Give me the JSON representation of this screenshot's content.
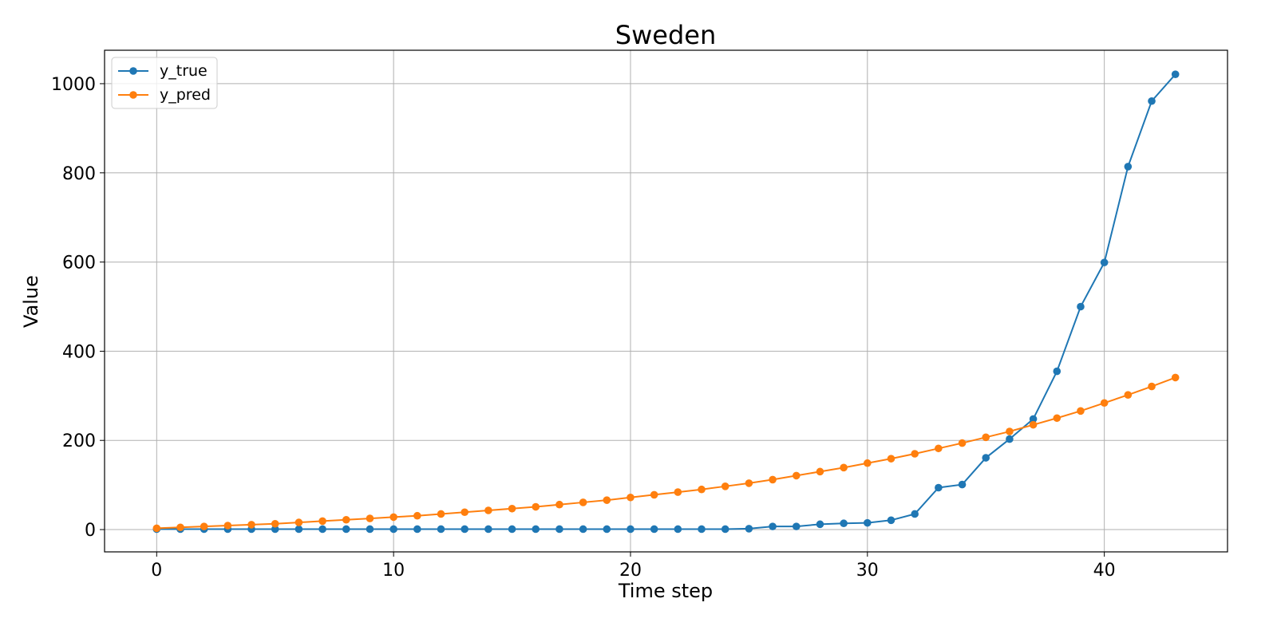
{
  "chart_data": {
    "type": "line",
    "title": "Sweden",
    "xlabel": "Time step",
    "ylabel": "Value",
    "xlim": [
      -2.2,
      45.2
    ],
    "ylim": [
      -50,
      1075
    ],
    "xticks": [
      0,
      10,
      20,
      30,
      40
    ],
    "yticks": [
      0,
      200,
      400,
      600,
      800,
      1000
    ],
    "grid": true,
    "legend_position": "top-left",
    "x": [
      0,
      1,
      2,
      3,
      4,
      5,
      6,
      7,
      8,
      9,
      10,
      11,
      12,
      13,
      14,
      15,
      16,
      17,
      18,
      19,
      20,
      21,
      22,
      23,
      24,
      25,
      26,
      27,
      28,
      29,
      30,
      31,
      32,
      33,
      34,
      35,
      36,
      37,
      38,
      39,
      40,
      41,
      42,
      43
    ],
    "series": [
      {
        "name": "y_true",
        "color": "#1f77b4",
        "values": [
          1,
          1,
          1,
          1,
          1,
          1,
          1,
          1,
          1,
          1,
          1,
          1,
          1,
          1,
          1,
          1,
          1,
          1,
          1,
          1,
          1,
          1,
          1,
          1,
          1,
          2,
          7,
          7,
          12,
          14,
          15,
          21,
          35,
          94,
          101,
          161,
          203,
          248,
          355,
          500,
          599,
          814,
          961,
          1021
        ]
      },
      {
        "name": "y_pred",
        "color": "#ff7f0e",
        "values": [
          3,
          5,
          7,
          9,
          11,
          13,
          16,
          19,
          22,
          25,
          28,
          31,
          35,
          39,
          43,
          47,
          51,
          56,
          61,
          66,
          72,
          78,
          84,
          90,
          97,
          104,
          112,
          121,
          130,
          139,
          149,
          159,
          170,
          182,
          194,
          207,
          220,
          235,
          250,
          266,
          284,
          302,
          321,
          341
        ]
      }
    ]
  }
}
